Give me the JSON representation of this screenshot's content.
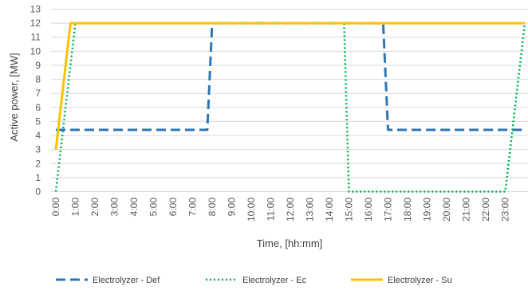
{
  "chart_data": {
    "type": "line",
    "xlabel": "Time, [hh:mm]",
    "ylabel": "Active power, [MW]",
    "ylim": [
      0,
      13
    ],
    "yticks": [
      "0",
      "1",
      "2",
      "3",
      "4",
      "5",
      "6",
      "7",
      "8",
      "9",
      "10",
      "11",
      "12",
      "13"
    ],
    "xticks": [
      "0:00",
      "1:00",
      "2:00",
      "3:00",
      "4:00",
      "5:00",
      "6:00",
      "7:00",
      "8:00",
      "9:00",
      "10:00",
      "11:00",
      "12:00",
      "13:00",
      "14:00",
      "15:00",
      "16:00",
      "17:00",
      "18:00",
      "19:00",
      "20:00",
      "21:00",
      "22:00",
      "23:00"
    ],
    "xlim": [
      0,
      24
    ],
    "grid": "horizontal",
    "legend_position": "bottom",
    "series": [
      {
        "name": "Electrolyzer - Def",
        "color": "#2e75b6",
        "dash": "dashed",
        "points": [
          [
            0,
            4.4
          ],
          [
            7.75,
            4.4
          ],
          [
            8.0,
            12
          ],
          [
            16.75,
            12
          ],
          [
            17.0,
            4.4
          ],
          [
            24,
            4.4
          ]
        ]
      },
      {
        "name": "Electrolyzer - Ec",
        "color": "#00b050",
        "dash": "dotted",
        "points": [
          [
            0,
            0
          ],
          [
            1.0,
            12
          ],
          [
            14.75,
            12
          ],
          [
            15.0,
            0
          ],
          [
            23.0,
            0
          ],
          [
            24,
            12
          ]
        ]
      },
      {
        "name": "Electrolyzer - Su",
        "color": "#ffc000",
        "dash": "solid",
        "points": [
          [
            0,
            3.0
          ],
          [
            0.75,
            12
          ],
          [
            24,
            12
          ]
        ]
      }
    ]
  }
}
